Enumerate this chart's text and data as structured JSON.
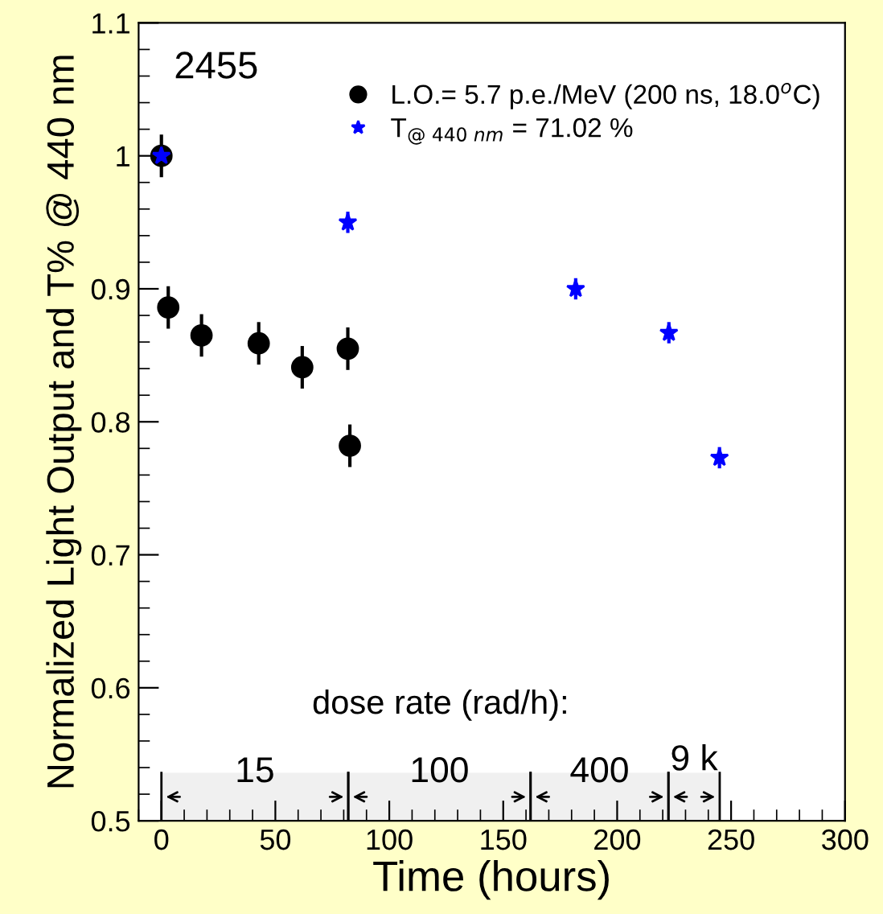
{
  "chart_data": {
    "type": "scatter",
    "title": "2455",
    "xlabel": "Time (hours)",
    "ylabel": "Normalized Light Output and T% @ 440 nm",
    "series": [
      {
        "name": "L.O.= 5.7 p.e./MeV (200 ns, 18.0$^{o}$C)",
        "color": "#000000",
        "marker": "circle",
        "x": [
          0,
          3,
          17.6,
          42.7,
          61.8,
          81.8,
          82.7
        ],
        "values": [
          1.0,
          0.886,
          0.865,
          0.859,
          0.841,
          0.855,
          0.782
        ],
        "errors": [
          0.016,
          0.016,
          0.016,
          0.016,
          0.016,
          0.016,
          0.016
        ]
      },
      {
        "name": "T$_{@ 440 nm}$ = 71.02 %",
        "color": "#0000ff",
        "marker": "star",
        "x": [
          0,
          81.8,
          181.8,
          222.7,
          244.9
        ],
        "values": [
          1.0,
          0.95,
          0.9,
          0.867,
          0.773
        ],
        "errors": [
          0.008,
          0.008,
          0.008,
          0.008,
          0.008
        ]
      }
    ],
    "xlim": [
      -10,
      300
    ],
    "xticks": [
      0,
      50,
      100,
      150,
      200,
      250,
      300
    ],
    "ylim": [
      0.5,
      1.1
    ],
    "yticks": [
      0.5,
      0.6,
      0.7,
      0.8,
      0.9,
      1,
      1.1
    ],
    "bands": [
      {
        "axis": "x",
        "from": 0,
        "to": 82,
        "label": "15"
      },
      {
        "axis": "x",
        "from": 82,
        "to": 162,
        "label": "100"
      },
      {
        "axis": "x",
        "from": 162,
        "to": 222.5,
        "label": "400"
      },
      {
        "axis": "x",
        "from": 222.5,
        "to": 245,
        "label": "9 k"
      }
    ],
    "annotations": [
      "dose rate (rad/h):"
    ],
    "legend": "top right",
    "grid": false
  }
}
